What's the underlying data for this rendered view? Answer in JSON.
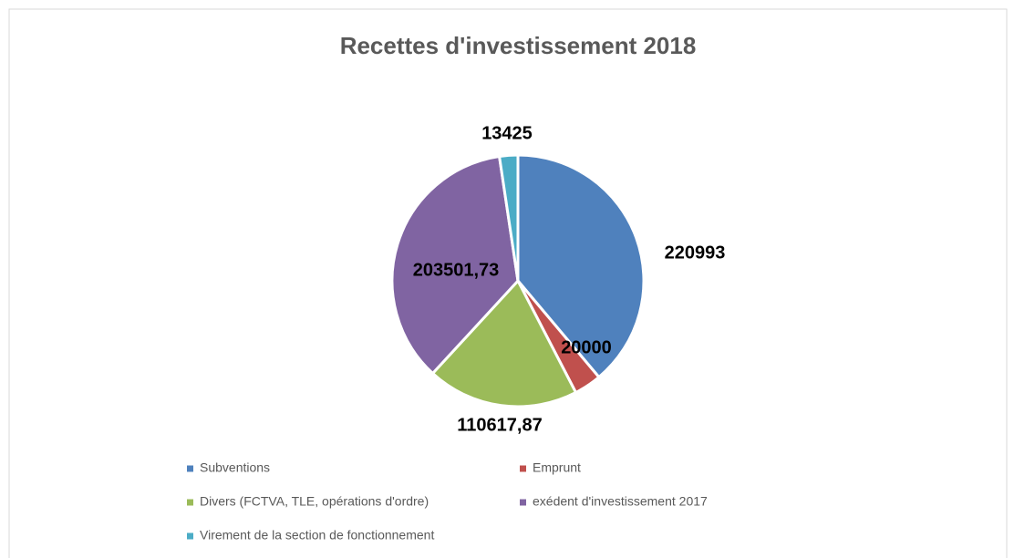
{
  "chart_data": {
    "type": "pie",
    "title": "Recettes d'investissement 2018",
    "categories": [
      "Subventions",
      "Emprunt",
      "Divers (FCTVA, TLE, opérations d'ordre)",
      "exédent d'investissement 2017",
      "Virement de la section de fonctionnement"
    ],
    "values": [
      220993,
      20000,
      110617.87,
      203501.73,
      13425
    ],
    "value_labels": [
      "220993",
      "20000",
      "110617,87",
      "203501,73",
      "13425"
    ],
    "colors": [
      "#4f81bd",
      "#c0504d",
      "#9bbb59",
      "#8064a2",
      "#4bacc6"
    ],
    "legend": "bottom"
  }
}
